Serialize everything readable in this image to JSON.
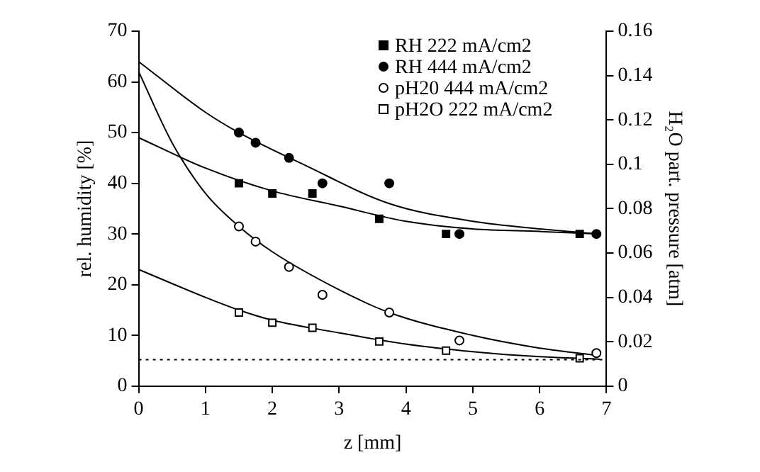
{
  "chart_data": {
    "type": "scatter",
    "xlabel": "z [mm]",
    "ylabel": "rel. humidity [%]",
    "y2label": "H₂O part. pressure [atm]",
    "xlim": [
      0,
      7
    ],
    "xticks": [
      0,
      1,
      2,
      3,
      4,
      5,
      6,
      7
    ],
    "ylim": [
      0,
      70
    ],
    "yticks": [
      0,
      10,
      20,
      30,
      40,
      50,
      60,
      70
    ],
    "y2lim": [
      0,
      0.16
    ],
    "y2ticks": [
      {
        "value": 0,
        "label": "0"
      },
      0.02,
      0.04,
      0.06,
      0.08,
      {
        "value": 0.1,
        "label": "0.1"
      },
      0.12,
      0.14,
      0.16
    ],
    "grid": false,
    "legend": "top right",
    "ref_lines": [
      {
        "axis": "y",
        "value": 5.2,
        "color": "#000000",
        "line_style": "dotted"
      }
    ],
    "series": [
      {
        "name": "RH 222 mA/cm2",
        "type": "scatter",
        "marker": "square",
        "color": "#000000",
        "x": [
          1.5,
          2.0,
          2.6,
          3.6,
          4.6,
          6.6
        ],
        "values": [
          40,
          38,
          38,
          33,
          30,
          30
        ]
      },
      {
        "name": "RH 444 mA/cm2",
        "type": "scatter",
        "marker": "circle",
        "color": "#000000",
        "x": [
          1.5,
          1.75,
          2.25,
          2.75,
          3.75,
          4.8,
          6.85
        ],
        "values": [
          50,
          48,
          45,
          40,
          40,
          30,
          30
        ]
      },
      {
        "name": "pH20 444 mA/cm2",
        "type": "scatter",
        "marker": "circle",
        "color": "#ffffff",
        "x": [
          1.5,
          1.75,
          2.25,
          2.75,
          3.75,
          4.8,
          6.85
        ],
        "values": [
          31.5,
          28.5,
          23.5,
          18,
          14.5,
          9,
          6.5
        ]
      },
      {
        "name": "pH2O 222 mA/cm2",
        "type": "scatter",
        "marker": "square",
        "color": "#ffffff",
        "x": [
          1.5,
          2.0,
          2.6,
          3.6,
          4.6,
          6.6
        ],
        "values": [
          14.5,
          12.5,
          11.5,
          8.8,
          7,
          5.5
        ]
      },
      {
        "type": "line",
        "marker": "none",
        "color": "#000000",
        "x": [
          0,
          1,
          1.5,
          2.5,
          3.75,
          5,
          6,
          6.9
        ],
        "values": [
          64,
          54,
          50,
          43.5,
          36,
          32.5,
          31,
          30
        ]
      },
      {
        "type": "line",
        "marker": "none",
        "color": "#000000",
        "x": [
          0,
          1,
          2,
          3,
          4,
          5,
          6,
          6.9
        ],
        "values": [
          49,
          43,
          38.5,
          35.5,
          32.5,
          31,
          30.5,
          30
        ]
      },
      {
        "type": "line",
        "marker": "none",
        "color": "#000000",
        "x": [
          0,
          0.5,
          1,
          1.5,
          2,
          3,
          3.75,
          5,
          6,
          6.9
        ],
        "values": [
          62,
          48,
          38,
          31.5,
          26.5,
          19,
          14.5,
          10,
          7.5,
          6
        ]
      },
      {
        "type": "line",
        "marker": "none",
        "color": "#000000",
        "x": [
          0,
          1,
          1.5,
          2,
          3,
          4,
          5,
          6,
          6.9
        ],
        "values": [
          23,
          17.5,
          15,
          13,
          10.5,
          8.3,
          6.8,
          5.8,
          5.3
        ]
      }
    ]
  }
}
